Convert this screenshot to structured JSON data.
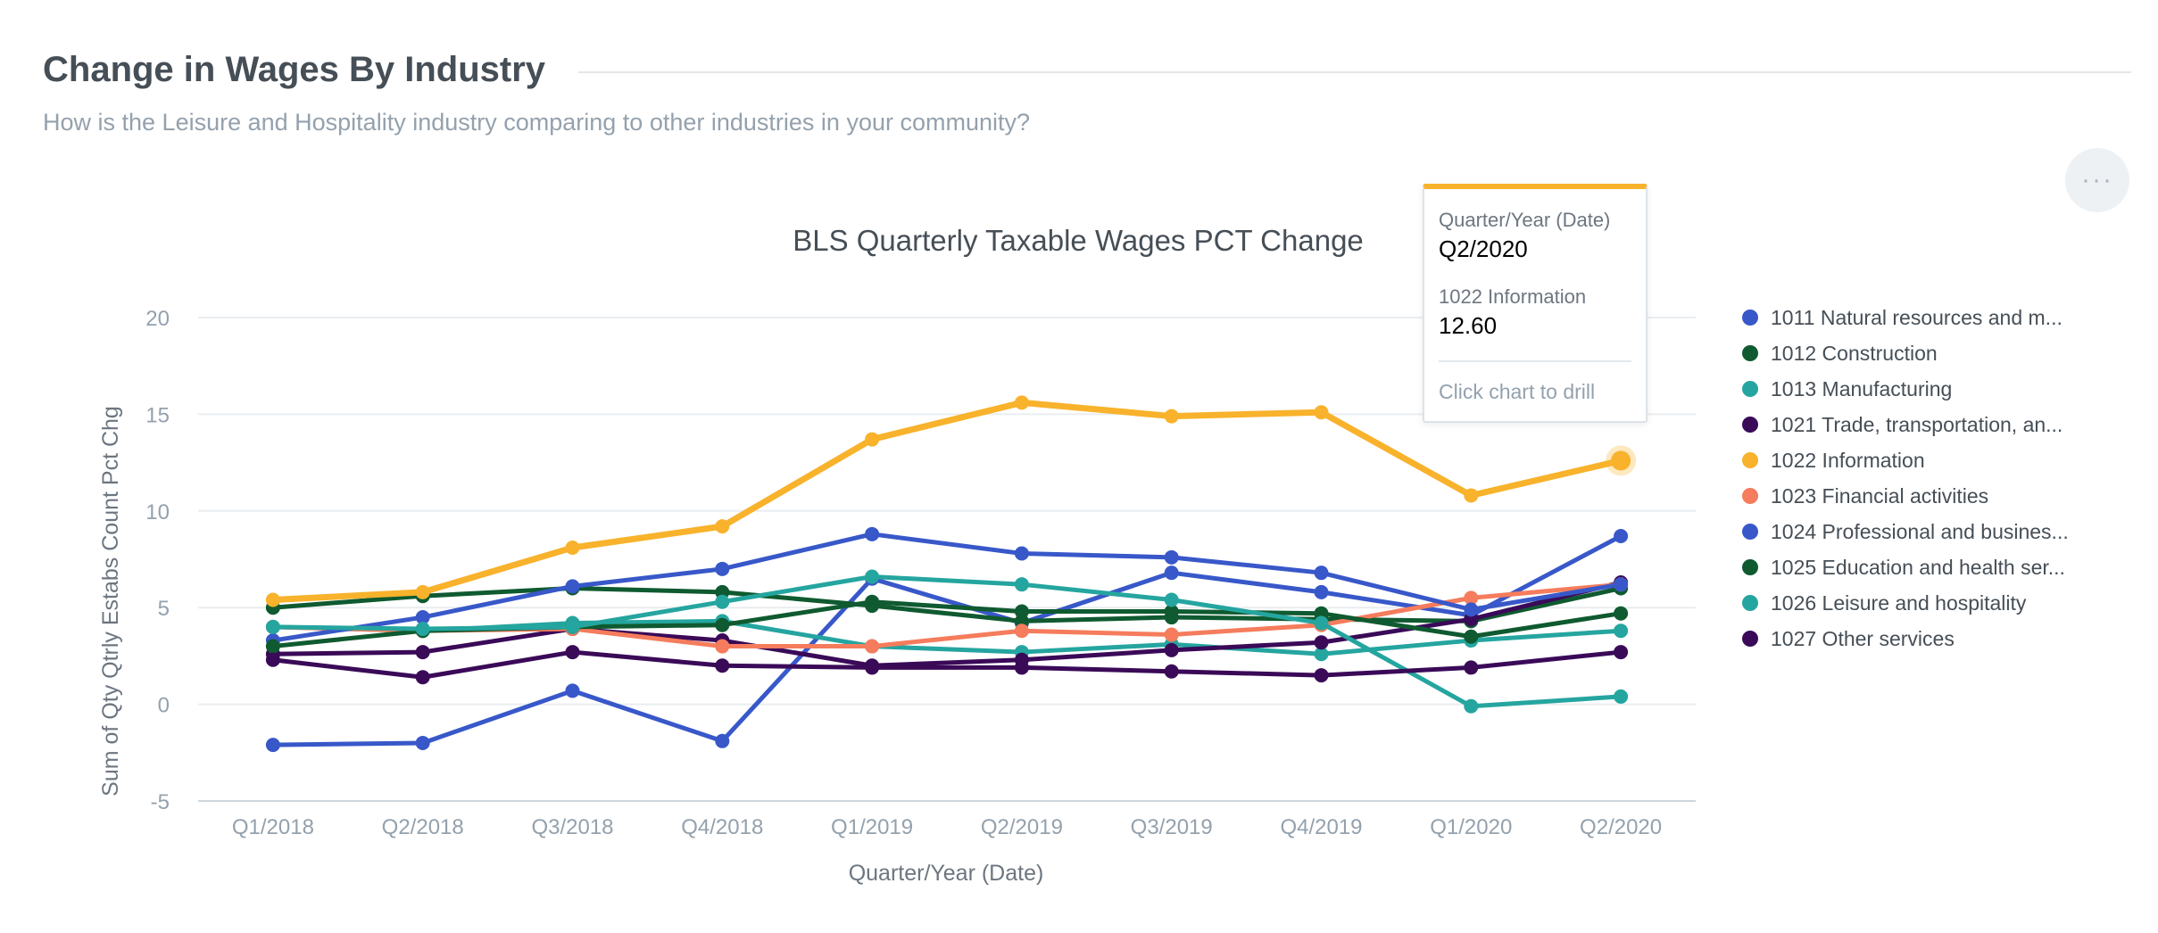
{
  "header": {
    "title": "Change in Wages By Industry",
    "subtitle": "How is the Leisure and Hospitality industry comparing to other industries in your community?",
    "menu_label": "···"
  },
  "tooltip": {
    "x_label": "Quarter/Year (Date)",
    "x_value": "Q2/2020",
    "series_label": "1022 Information",
    "series_value": "12.60",
    "hint": "Click chart to drill"
  },
  "chart_data": {
    "type": "line",
    "title": "BLS Quarterly Taxable Wages PCT Change",
    "xlabel": "Quarter/Year (Date)",
    "ylabel": "Sum of Qty Qtrly Estabs Count Pct Chg",
    "ylim": [
      -5,
      20
    ],
    "yticks": [
      20,
      15,
      10,
      5,
      0,
      -5
    ],
    "grid": true,
    "legend_position": "right",
    "categories": [
      "Q1/2018",
      "Q2/2018",
      "Q3/2018",
      "Q4/2018",
      "Q1/2019",
      "Q2/2019",
      "Q3/2019",
      "Q4/2019",
      "Q1/2020",
      "Q2/2020"
    ],
    "highlight": {
      "series": "1022 Information",
      "category": "Q2/2020"
    },
    "series": [
      {
        "name": "1011 Natural resources and m...",
        "color": "#3858c9",
        "values": [
          -2.1,
          -2.0,
          0.7,
          -1.9,
          6.5,
          4.2,
          6.8,
          5.8,
          4.6,
          8.7
        ]
      },
      {
        "name": "1012 Construction",
        "color": "#0f5a30",
        "values": [
          5.0,
          5.6,
          6.0,
          5.8,
          5.1,
          4.3,
          4.5,
          4.4,
          4.3,
          6.0
        ]
      },
      {
        "name": "1013 Manufacturing",
        "color": "#25a59f",
        "values": [
          4.0,
          3.8,
          4.2,
          4.3,
          3.0,
          2.7,
          3.1,
          2.6,
          3.3,
          3.8
        ]
      },
      {
        "name": "1021 Trade, transportation, an...",
        "color": "#3a0a58",
        "values": [
          2.6,
          2.7,
          3.9,
          3.3,
          2.0,
          2.3,
          2.8,
          3.2,
          4.4,
          6.3
        ]
      },
      {
        "name": "1022 Information",
        "color": "#f8b22b",
        "values": [
          5.4,
          5.8,
          8.1,
          9.2,
          13.7,
          15.6,
          14.9,
          15.1,
          10.8,
          12.6
        ]
      },
      {
        "name": "1023 Financial activities",
        "color": "#f57c5c",
        "values": [
          4.0,
          3.8,
          3.9,
          3.0,
          3.0,
          3.8,
          3.6,
          4.1,
          5.5,
          6.2
        ]
      },
      {
        "name": "1024 Professional and busines...",
        "color": "#3858c9",
        "values": [
          3.3,
          4.5,
          6.1,
          7.0,
          8.8,
          7.8,
          7.6,
          6.8,
          4.9,
          6.2
        ]
      },
      {
        "name": "1025 Education and health ser...",
        "color": "#0f5a30",
        "values": [
          3.0,
          3.8,
          4.0,
          4.1,
          5.3,
          4.8,
          4.8,
          4.7,
          3.5,
          4.7
        ]
      },
      {
        "name": "1026 Leisure and hospitality",
        "color": "#25a59f",
        "values": [
          4.0,
          3.9,
          4.0,
          5.3,
          6.6,
          6.2,
          5.4,
          4.2,
          -0.1,
          0.4
        ]
      },
      {
        "name": "1027 Other services",
        "color": "#3a0a58",
        "values": [
          2.3,
          1.4,
          2.7,
          2.0,
          1.9,
          1.9,
          1.7,
          1.5,
          1.9,
          2.7
        ]
      }
    ]
  }
}
